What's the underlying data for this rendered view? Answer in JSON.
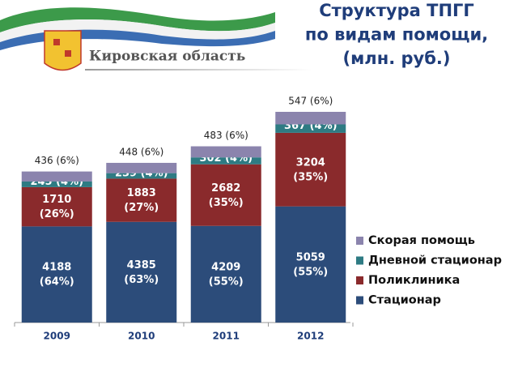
{
  "header": {
    "region": "Кировская область"
  },
  "chart_data": {
    "type": "stacked-bar",
    "title": [
      "Структура ТПГГ",
      "по видам помощи,",
      "(млн. руб.)"
    ],
    "categories": [
      "2009",
      "2010",
      "2011",
      "2012"
    ],
    "series": [
      {
        "name": "Стационар",
        "color": "#2c4c7a",
        "values": [
          4188,
          4385,
          4209,
          5059
        ],
        "value_labels": [
          "4188 (64%)",
          "4385 (63%)",
          "4209 (55%)",
          "5059 (55%)"
        ]
      },
      {
        "name": "Поликлиника",
        "color": "#8a2a2c",
        "values": [
          1710,
          1883,
          2682,
          3204
        ],
        "value_labels": [
          "1710 (26%)",
          "1883 (27%)",
          "2682 (35%)",
          "3204 (35%)"
        ]
      },
      {
        "name": "Дневной стационар",
        "color": "#2e7b83",
        "values": [
          245,
          239,
          302,
          367
        ],
        "value_labels": [
          "245 (4%)",
          "239 (4%)",
          "302 (4%)",
          "367 (4%)"
        ]
      },
      {
        "name": "Скорая помощь",
        "color": "#8b84ad",
        "values": [
          436,
          448,
          483,
          547
        ],
        "value_labels": [
          "436 (6%)",
          "448 (6%)",
          "483 (6%)",
          "547 (6%)"
        ]
      }
    ],
    "legend": "right"
  }
}
